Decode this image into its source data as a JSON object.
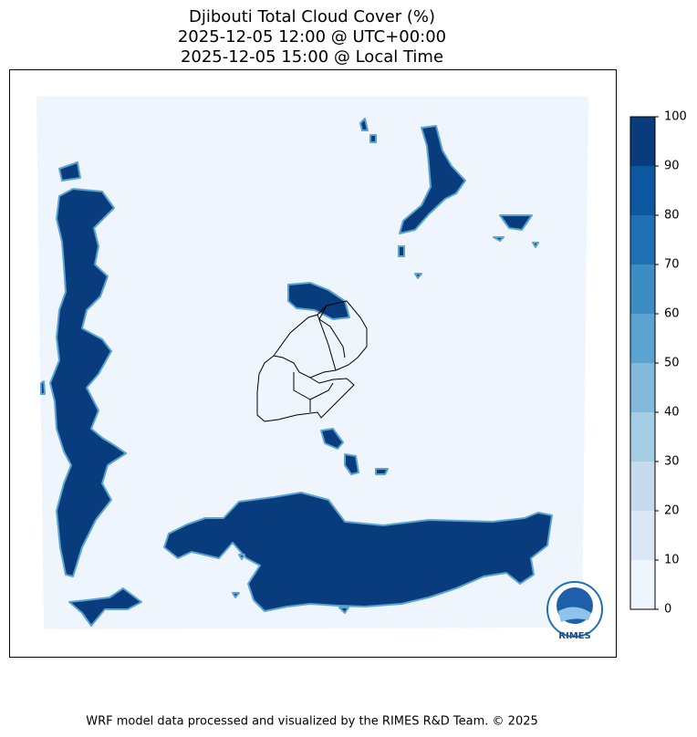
{
  "title": [
    "Djibouti Total Cloud Cover (%)",
    "2025-12-05 12:00 @ UTC+00:00",
    "2025-12-05 15:00 @ Local Time"
  ],
  "colorbar": {
    "ticks": [
      0,
      10,
      20,
      30,
      40,
      50,
      60,
      70,
      80,
      90,
      100
    ],
    "colors": [
      "#eef5fd",
      "#dae8f6",
      "#c6dbef",
      "#a5cde3",
      "#82badb",
      "#5ba3d0",
      "#3d8dc4",
      "#2070b4",
      "#0e58a2",
      "#083c7d"
    ]
  },
  "logo": "RIMES",
  "footer": "WRF model data processed and visualized by the RIMES R&D Team. © 2025"
}
